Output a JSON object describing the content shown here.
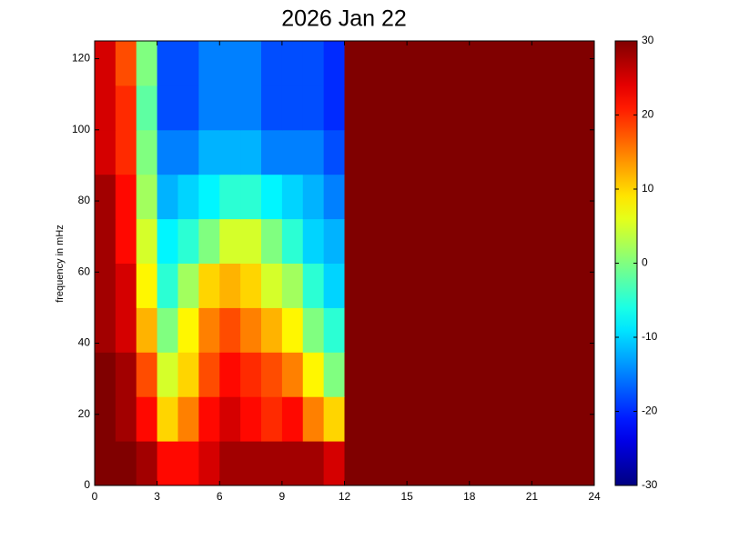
{
  "chart_data": {
    "type": "heatmap",
    "title": "2026 Jan 22",
    "y_label": "frequency in mHz",
    "colormap": "jet",
    "clim": [
      -30,
      30
    ],
    "x_bins": [
      0,
      1,
      2,
      3,
      4,
      5,
      6,
      7,
      8,
      9,
      10,
      11,
      12,
      13,
      14,
      15,
      16,
      17,
      18,
      19,
      20,
      21,
      22,
      23,
      24
    ],
    "y_bins": [
      0,
      12.5,
      25,
      37.5,
      50,
      62.5,
      75,
      87.5,
      100,
      112.5,
      125
    ],
    "z": [
      [
        30,
        30,
        28,
        22,
        22,
        25,
        28,
        28,
        28,
        28,
        28,
        25,
        30,
        30,
        30,
        30,
        30,
        30,
        30,
        30,
        30,
        30,
        30,
        30
      ],
      [
        30,
        28,
        22,
        10,
        15,
        22,
        25,
        22,
        20,
        22,
        15,
        10,
        30,
        30,
        30,
        30,
        30,
        30,
        30,
        30,
        30,
        30,
        30,
        30
      ],
      [
        30,
        28,
        18,
        5,
        10,
        18,
        22,
        20,
        18,
        15,
        8,
        0,
        30,
        30,
        30,
        30,
        30,
        30,
        30,
        30,
        30,
        30,
        30,
        30
      ],
      [
        28,
        25,
        12,
        0,
        8,
        15,
        18,
        15,
        12,
        8,
        0,
        -5,
        30,
        30,
        30,
        30,
        30,
        30,
        30,
        30,
        30,
        30,
        30,
        30
      ],
      [
        28,
        25,
        8,
        -5,
        2,
        10,
        12,
        10,
        5,
        2,
        -5,
        -10,
        30,
        30,
        30,
        30,
        30,
        30,
        30,
        30,
        30,
        30,
        30,
        30
      ],
      [
        28,
        22,
        5,
        -8,
        -5,
        0,
        5,
        5,
        0,
        -5,
        -10,
        -12,
        30,
        30,
        30,
        30,
        30,
        30,
        30,
        30,
        30,
        30,
        30,
        30
      ],
      [
        28,
        22,
        2,
        -12,
        -10,
        -8,
        -5,
        -5,
        -8,
        -10,
        -12,
        -15,
        30,
        30,
        30,
        30,
        30,
        30,
        30,
        30,
        30,
        30,
        30,
        30
      ],
      [
        25,
        20,
        0,
        -15,
        -15,
        -12,
        -12,
        -12,
        -15,
        -15,
        -15,
        -18,
        30,
        30,
        30,
        30,
        30,
        30,
        30,
        30,
        30,
        30,
        30,
        30
      ],
      [
        25,
        20,
        -2,
        -18,
        -18,
        -15,
        -15,
        -15,
        -18,
        -18,
        -18,
        -20,
        30,
        30,
        30,
        30,
        30,
        30,
        30,
        30,
        30,
        30,
        30,
        30
      ],
      [
        25,
        18,
        0,
        -18,
        -18,
        -15,
        -15,
        -15,
        -18,
        -18,
        -18,
        -20,
        30,
        30,
        30,
        30,
        30,
        30,
        30,
        30,
        30,
        30,
        30,
        30
      ]
    ],
    "xlim": [
      0,
      24
    ],
    "xticks": [
      0,
      3,
      6,
      9,
      12,
      15,
      18,
      21,
      24
    ],
    "ylim": [
      0,
      125
    ],
    "yticks": [
      0,
      20,
      40,
      60,
      80,
      100,
      120
    ],
    "colorbar_ticks": [
      -30,
      -20,
      -10,
      0,
      10,
      20,
      30
    ]
  }
}
